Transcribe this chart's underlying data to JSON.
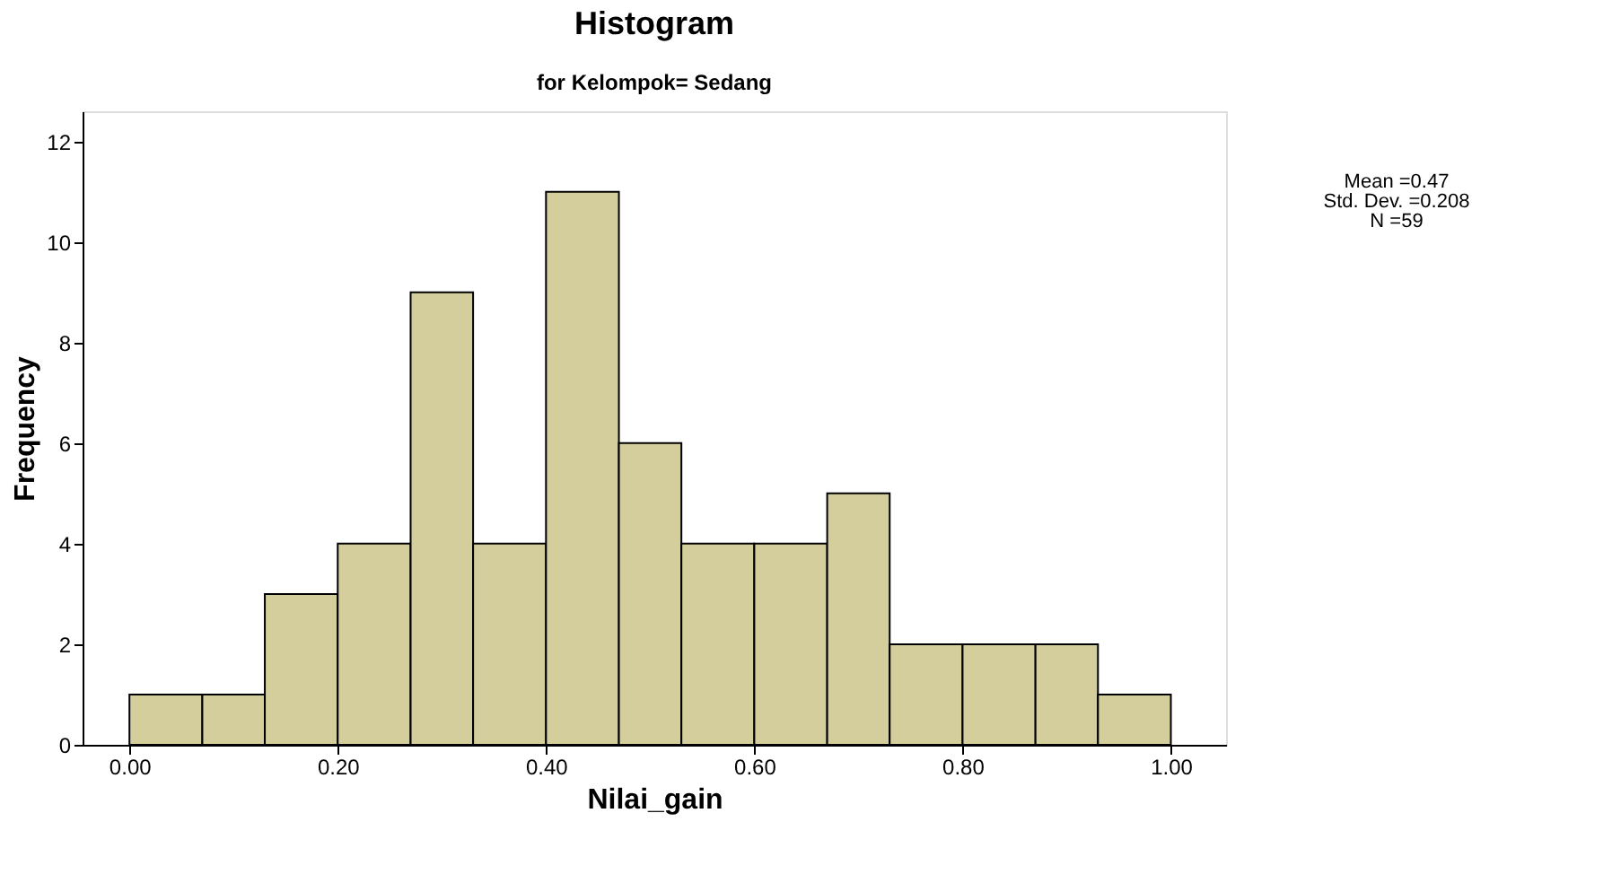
{
  "chart_data": {
    "type": "histogram",
    "title": "Histogram",
    "subtitle": "for Kelompok= Sedang",
    "xlabel": "Nilai_gain",
    "ylabel": "Frequency",
    "bins": [
      0,
      0.07,
      0.13,
      0.2,
      0.27,
      0.33,
      0.4,
      0.47,
      0.53,
      0.6,
      0.67,
      0.73,
      0.8,
      0.87,
      0.93,
      1.0
    ],
    "values": [
      1,
      1,
      3,
      4,
      9,
      4,
      11,
      6,
      4,
      4,
      5,
      2,
      2,
      2,
      1
    ],
    "color": "#d3ce9b",
    "xlim": [
      -0.045,
      1.053
    ],
    "ylim": [
      0,
      12.6
    ],
    "xticks": [
      {
        "value": 0,
        "label": "0.00"
      },
      {
        "value": 0.2,
        "label": "0.20"
      },
      {
        "value": 0.4,
        "label": "0.40"
      },
      {
        "value": 0.6,
        "label": "0.60"
      },
      {
        "value": 0.8,
        "label": "0.80"
      },
      {
        "value": 1.0,
        "label": "1.00"
      }
    ],
    "yticks": [
      0,
      2,
      4,
      6,
      8,
      10,
      12
    ],
    "annotations": [
      "Mean =0.47",
      "Std. Dev. =0.208",
      "N =59"
    ]
  }
}
